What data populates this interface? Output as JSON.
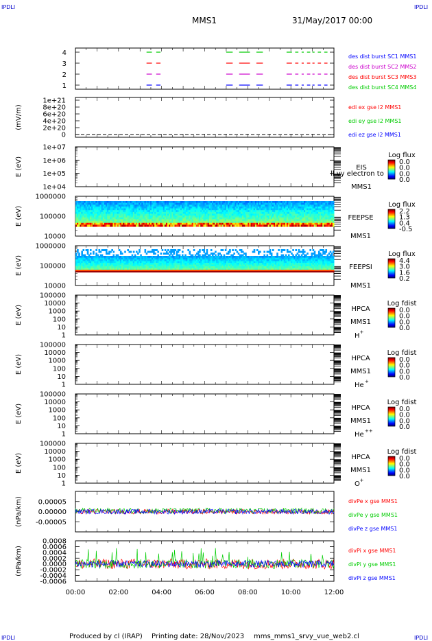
{
  "header": {
    "left_tag": "IPDLI",
    "right_tag": "IPDLI",
    "title": "MMS1",
    "date": "31/May/2017 00:00"
  },
  "footer": {
    "left_tag": "IPDLI",
    "right_tag": "IPDLI",
    "credit": "Produced by cl (IRAP)",
    "printing": "Printing date: 28/Nov/2023",
    "file": "mms_mms1_srvy_vue_web2.cl"
  },
  "colors": {
    "red": "#ff0000",
    "green": "#00cc00",
    "blue": "#0000ff",
    "magenta": "#cc00cc"
  },
  "chart_data": [
    {
      "type": "line",
      "panel": "burst",
      "yticks": [
        "1",
        "2",
        "3",
        "4"
      ],
      "series": [
        {
          "name": "des dist burst SC1 MMS1",
          "color": "#00cc00",
          "level": 4
        },
        {
          "name": "des dist burst SC2 MMS2",
          "color": "#ff0000",
          "level": 3
        },
        {
          "name": "des dist burst SC3 MMS3",
          "color": "#cc00cc",
          "level": 2
        },
        {
          "name": "des dist burst SC4 MMS4",
          "color": "#0000ff",
          "level": 1
        }
      ],
      "legend": [
        "des dist burst SC1 MMS1",
        "des dist burst SC2 MMS2",
        "des dist burst SC3 MMS3",
        "des dist burst SC4 MMS4"
      ],
      "legend_colors": [
        "#0000ff",
        "#cc00cc",
        "#ff0000",
        "#00cc00"
      ],
      "intervals_hours": [
        [
          3.3,
          3.55
        ],
        [
          3.75,
          3.95
        ],
        [
          7.0,
          7.3
        ],
        [
          7.6,
          8.1
        ],
        [
          8.4,
          8.7
        ],
        [
          9.8,
          10.05
        ],
        [
          10.2,
          10.35
        ],
        [
          10.5,
          10.6
        ],
        [
          10.75,
          10.9
        ],
        [
          11.0,
          11.1
        ],
        [
          11.25,
          11.4
        ],
        [
          11.55,
          11.7
        ]
      ]
    },
    {
      "type": "line",
      "panel": "edi",
      "ylabel": "(mV/m)",
      "yticks": [
        "0",
        "2e+20",
        "4e+20",
        "6e+20",
        "8e+20",
        "1e+21"
      ],
      "ylim": [
        0,
        1e+21
      ],
      "series": [
        {
          "name": "edi ex gse l2 MMS1",
          "color": "#ff0000"
        },
        {
          "name": "edi ey gse l2 MMS1",
          "color": "#00cc00"
        },
        {
          "name": "edi ez gse l2 MMS1",
          "color": "#0000ff"
        }
      ]
    },
    {
      "type": "heatmap",
      "panel": "EIS",
      "ylabel": "E (eV)",
      "yticks": [
        "1e+04",
        "1e+05",
        "1e+06",
        "1e+07"
      ],
      "ylim": [
        10000,
        10000000
      ],
      "yscale": "log",
      "labels": [
        "EIS",
        "MMS1"
      ],
      "overlay": "ll vy electron to",
      "cbar_title": "Log flux",
      "cbar_ticks": [
        "0.0",
        "0.0",
        "0.0",
        "0.0"
      ]
    },
    {
      "type": "heatmap",
      "panel": "FEEPSE",
      "ylabel": "E (eV)",
      "yticks": [
        "10000",
        "100000",
        "1000000"
      ],
      "ylim": [
        10000,
        1000000
      ],
      "yscale": "log",
      "labels": [
        "FEEPSE",
        "MMS1"
      ],
      "cbar_title": "Log flux",
      "cbar_ticks": [
        "2.2",
        "1.3",
        "0.4",
        "-0.5"
      ]
    },
    {
      "type": "heatmap",
      "panel": "FEEPSI",
      "ylabel": "E (eV)",
      "yticks": [
        "10000",
        "100000",
        "1000000"
      ],
      "ylim": [
        10000,
        1000000
      ],
      "yscale": "log",
      "labels": [
        "FEEPSI",
        "MMS1"
      ],
      "cbar_title": "Log flux",
      "cbar_ticks": [
        "4.4",
        "3.0",
        "1.6",
        "0.2"
      ]
    },
    {
      "type": "heatmap",
      "panel": "HPCA-H",
      "ylabel": "E (eV)",
      "yticks": [
        "1",
        "10",
        "100",
        "1000",
        "10000",
        "100000"
      ],
      "ylim": [
        1,
        100000
      ],
      "yscale": "log",
      "labels": [
        "HPCA",
        "MMS1"
      ],
      "species": "H",
      "charge": "+",
      "cbar_title": "Log fdist",
      "cbar_ticks": [
        "0.0",
        "0.0",
        "0.0",
        "0.0"
      ]
    },
    {
      "type": "heatmap",
      "panel": "HPCA-He",
      "ylabel": "E (eV)",
      "yticks": [
        "1",
        "10",
        "100",
        "1000",
        "10000",
        "100000"
      ],
      "ylim": [
        1,
        100000
      ],
      "yscale": "log",
      "labels": [
        "HPCA",
        "MMS1"
      ],
      "species": "He",
      "charge": "+",
      "cbar_title": "Log fdist",
      "cbar_ticks": [
        "0.0",
        "0.0",
        "0.0",
        "0.0"
      ]
    },
    {
      "type": "heatmap",
      "panel": "HPCA-He2",
      "ylabel": "E (eV)",
      "yticks": [
        "1",
        "10",
        "100",
        "1000",
        "10000",
        "100000"
      ],
      "ylim": [
        1,
        100000
      ],
      "yscale": "log",
      "labels": [
        "HPCA",
        "MMS1"
      ],
      "species": "He",
      "charge": "++",
      "cbar_title": "Log fdist",
      "cbar_ticks": [
        "0.0",
        "0.0",
        "0.0",
        "0.0"
      ]
    },
    {
      "type": "heatmap",
      "panel": "HPCA-O",
      "ylabel": "E (eV)",
      "yticks": [
        "1",
        "10",
        "100",
        "1000",
        "10000",
        "100000"
      ],
      "ylim": [
        1,
        100000
      ],
      "yscale": "log",
      "labels": [
        "HPCA",
        "MMS1"
      ],
      "species": "O",
      "charge": "+",
      "cbar_title": "Log fdist",
      "cbar_ticks": [
        "0.0",
        "0.0",
        "0.0",
        "0.0"
      ]
    },
    {
      "type": "line",
      "panel": "divPe",
      "ylabel": "(nPa/km)",
      "yticks": [
        "-0.00005",
        "0.00000",
        "0.00005"
      ],
      "ylim": [
        -0.0001,
        0.0001
      ],
      "series": [
        {
          "name": "divPe x gse MMS1",
          "color": "#ff0000",
          "amp": 1.2e-05
        },
        {
          "name": "divPe y gse MMS1",
          "color": "#00cc00",
          "amp": 1.4e-05
        },
        {
          "name": "divPe z gse MMS1",
          "color": "#0000ff",
          "amp": 1.2e-05
        }
      ]
    },
    {
      "type": "line",
      "panel": "divPi",
      "ylabel": "(nPa/km)",
      "yticks": [
        "-0.0006",
        "-0.0004",
        "-0.0002",
        "0.0000",
        "0.0002",
        "0.0004",
        "0.0006",
        "0.0008"
      ],
      "ylim": [
        -0.0006,
        0.0008
      ],
      "series": [
        {
          "name": "divPi x gse MMS1",
          "color": "#ff0000",
          "amp": 0.00018
        },
        {
          "name": "divPi y gse MMS1",
          "color": "#00cc00",
          "amp": 0.00016
        },
        {
          "name": "divPi z gse MMS1",
          "color": "#0000ff",
          "amp": 0.00012
        }
      ]
    }
  ],
  "xaxis": {
    "ticks": [
      "00:00",
      "02:00",
      "04:00",
      "06:00",
      "08:00",
      "10:00",
      "12:00"
    ],
    "range_hours": [
      0,
      12
    ]
  }
}
